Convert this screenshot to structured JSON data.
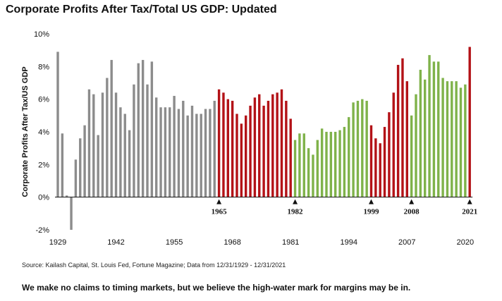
{
  "title": "Corporate Profits After Tax/Total US GDP: Updated",
  "source": "Source: Kailash Capital, St. Louis Fed, Fortune Magazine; Data from 12/31/1929 - 12/31/2021",
  "tagline": "We make no claims to timing markets, but we believe the high-water mark for margins may be in.",
  "chart_data": {
    "type": "bar",
    "ylabel": "Corporate Profits After Tax/US GDP",
    "ylim": [
      -2,
      10
    ],
    "yticks": [
      "10%",
      "8%",
      "6%",
      "4%",
      "2%",
      "0%",
      "-2%"
    ],
    "xtick_labels": [
      "1929",
      "1942",
      "1955",
      "1968",
      "1981",
      "1994",
      "2007",
      "2020"
    ],
    "grid": false,
    "annotations": [
      {
        "label": "1965",
        "year": 1965
      },
      {
        "label": "1982",
        "year": 1982
      },
      {
        "label": "1999",
        "year": 1999
      },
      {
        "label": "2008",
        "year": 2008
      },
      {
        "label": "2021",
        "year": 2021
      }
    ],
    "colors": {
      "gray": "#8c8c8c",
      "red": "#b31217",
      "green": "#7fb24a"
    },
    "series": [
      {
        "color_key": "gray",
        "x": [
          1929,
          1930,
          1931,
          1932,
          1933,
          1934,
          1935,
          1936,
          1937,
          1938,
          1939,
          1940,
          1941,
          1942,
          1943,
          1944,
          1945,
          1946,
          1947,
          1948,
          1949,
          1950,
          1951,
          1952,
          1953,
          1954,
          1955,
          1956,
          1957,
          1958,
          1959,
          1960,
          1961,
          1962,
          1963,
          1964
        ],
        "values": [
          8.9,
          3.9,
          0.1,
          -2.0,
          2.3,
          3.6,
          4.4,
          6.6,
          6.3,
          3.8,
          6.4,
          7.3,
          8.4,
          6.4,
          5.5,
          5.1,
          4.1,
          6.9,
          8.2,
          8.4,
          6.9,
          8.3,
          6.1,
          5.5,
          5.5,
          5.5,
          6.2,
          5.4,
          5.9,
          5.0,
          5.6,
          5.1,
          5.1,
          5.4,
          5.4,
          5.9
        ]
      },
      {
        "color_key": "red",
        "x": [
          1965,
          1966,
          1967,
          1968,
          1969,
          1970,
          1971,
          1972,
          1973,
          1974,
          1975,
          1976,
          1977,
          1978,
          1979,
          1980,
          1981
        ],
        "values": [
          6.6,
          6.4,
          6.0,
          5.9,
          5.1,
          4.5,
          5.0,
          5.6,
          6.1,
          6.3,
          5.6,
          5.9,
          6.3,
          6.4,
          6.6,
          5.9,
          4.8
        ]
      },
      {
        "color_key": "green",
        "x": [
          1982,
          1983,
          1984,
          1985,
          1986,
          1987,
          1988,
          1989,
          1990,
          1991,
          1992,
          1993,
          1994,
          1995,
          1996,
          1997,
          1998
        ],
        "values": [
          3.5,
          3.9,
          3.9,
          3.0,
          2.6,
          3.5,
          4.2,
          4.0,
          4.0,
          4.0,
          4.1,
          4.3,
          4.9,
          5.8,
          5.9,
          6.0,
          5.9
        ]
      },
      {
        "color_key": "red",
        "x": [
          1999,
          2000,
          2001,
          2002,
          2003,
          2004,
          2005,
          2006,
          2007
        ],
        "values": [
          4.4,
          3.6,
          3.3,
          4.3,
          5.2,
          6.4,
          8.1,
          8.5,
          7.1
        ]
      },
      {
        "color_key": "green",
        "x": [
          2008,
          2009,
          2010,
          2011,
          2012,
          2013,
          2014,
          2015,
          2016,
          2017,
          2018,
          2019,
          2020
        ],
        "values": [
          5.0,
          6.3,
          7.8,
          7.2,
          8.7,
          8.3,
          8.3,
          7.3,
          7.1,
          7.1,
          7.1,
          6.7,
          6.9
        ]
      },
      {
        "color_key": "red",
        "x": [
          2021
        ],
        "values": [
          9.2
        ]
      }
    ]
  }
}
